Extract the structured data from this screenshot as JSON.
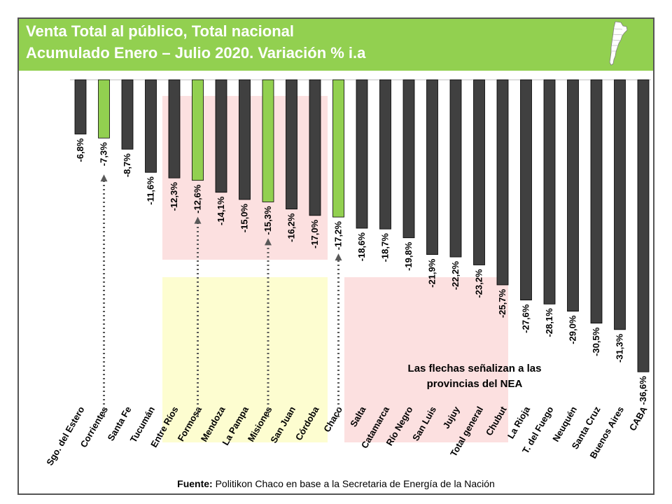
{
  "header": {
    "title_line1": "Venta Total al público, Total nacional",
    "title_line2": "Acumulado Enero – Julio 2020. Variación % i.a"
  },
  "annotation": "Las flechas señalizan a las provincias del NEA",
  "source": {
    "label": "Fuente:",
    "text": "Politikon Chaco en base a la Secretaria de Energía de la Nación"
  },
  "colors": {
    "header": "#92d050",
    "bar_default": "#404040",
    "bar_nea": "#92d050",
    "highlight_red": "#fbd5d5",
    "highlight_yellow": "#fdfdc8"
  },
  "chart_data": {
    "type": "bar",
    "categories": [
      "Sgo. del Estero",
      "Corrientes",
      "Santa Fe",
      "Tucumán",
      "Entre Ríos",
      "Formosa",
      "Mendoza",
      "La Pampa",
      "Misiones",
      "San Juan",
      "Córdoba",
      "Chaco",
      "Salta",
      "Catamarca",
      "Río Negro",
      "San Luis",
      "Jujuy",
      "Total general",
      "Chubut",
      "La Rioja",
      "T. del Fuego",
      "Neuquén",
      "Santa Cruz",
      "Buenos Aires",
      "CABA"
    ],
    "values": [
      -6.8,
      -7.3,
      -8.7,
      -11.6,
      -12.3,
      -12.6,
      -14.1,
      -15.0,
      -15.3,
      -16.2,
      -17.0,
      -17.2,
      -18.6,
      -18.7,
      -19.8,
      -21.9,
      -22.2,
      -23.2,
      -25.7,
      -27.6,
      -28.1,
      -29.0,
      -30.5,
      -31.3,
      -36.6
    ],
    "labels": [
      "-6,8%",
      "-7,3%",
      "-8,7%",
      "-11,6%",
      "-12,3%",
      "-12,6%",
      "-14,1%",
      "-15,0%",
      "-15,3%",
      "-16,2%",
      "-17,0%",
      "-17,2%",
      "-18,6%",
      "-18,7%",
      "-19,8%",
      "-21,9%",
      "-22,2%",
      "-23,2%",
      "-25,7%",
      "-27,6%",
      "-28,1%",
      "-29,0%",
      "-30,5%",
      "-31,3%",
      "-36,6%"
    ],
    "nea_provinces": [
      "Corrientes",
      "Formosa",
      "Misiones",
      "Chaco"
    ],
    "ylim": [
      -37,
      0
    ],
    "grid": false
  }
}
